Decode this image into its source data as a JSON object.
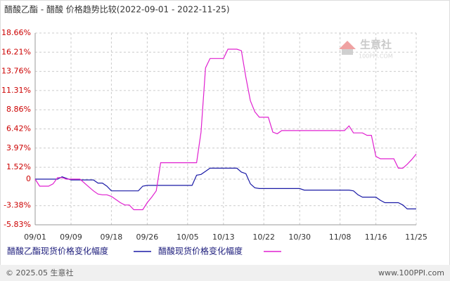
{
  "chart_data": {
    "type": "line",
    "title": "醋酸乙酯 - 醋酸 价格趋势比较(2022-09-01 - 2022-11-25)",
    "watermark": {
      "brand": "生意社",
      "site": "100PPI.COM"
    },
    "footer": {
      "left": "© 2025.05 生意社",
      "right": "www.100PPI.com"
    },
    "categories": [
      "09/01",
      null,
      null,
      null,
      null,
      null,
      null,
      null,
      "09/09",
      null,
      null,
      null,
      null,
      null,
      null,
      null,
      null,
      "09/18",
      null,
      null,
      null,
      null,
      null,
      null,
      null,
      "09/26",
      null,
      null,
      null,
      null,
      null,
      null,
      null,
      null,
      "10/05",
      null,
      null,
      null,
      null,
      null,
      null,
      null,
      "10/13",
      null,
      null,
      null,
      null,
      null,
      null,
      null,
      null,
      "10/22",
      null,
      null,
      null,
      null,
      null,
      null,
      null,
      "10/30",
      null,
      null,
      null,
      null,
      null,
      null,
      null,
      null,
      "11/08",
      null,
      null,
      null,
      null,
      null,
      null,
      null,
      "11/16",
      null,
      null,
      null,
      null,
      null,
      null,
      null,
      null,
      "11/25"
    ],
    "series": [
      {
        "name": "醋酸乙酯现货价格变化幅度",
        "color": "#1a1aa6",
        "values": [
          0,
          0,
          0,
          0,
          0,
          0,
          0.3,
          0.1,
          -0.1,
          -0.1,
          -0.1,
          -0.1,
          -0.1,
          -0.1,
          -0.5,
          -0.5,
          -0.9,
          -1.5,
          -1.5,
          -1.5,
          -1.5,
          -1.5,
          -1.5,
          -1.5,
          -0.9,
          -0.8,
          -0.8,
          -0.8,
          -0.8,
          -0.8,
          -0.8,
          -0.8,
          -0.8,
          -0.8,
          -0.8,
          -0.8,
          0.5,
          0.6,
          1.0,
          1.4,
          1.4,
          1.4,
          1.4,
          1.4,
          1.4,
          1.4,
          0.9,
          0.7,
          -0.6,
          -1.1,
          -1.2,
          -1.2,
          -1.2,
          -1.2,
          -1.2,
          -1.2,
          -1.2,
          -1.2,
          -1.2,
          -1.2,
          -1.4,
          -1.4,
          -1.4,
          -1.4,
          -1.4,
          -1.4,
          -1.4,
          -1.4,
          -1.4,
          -1.4,
          -1.4,
          -1.5,
          -2.0,
          -2.3,
          -2.3,
          -2.3,
          -2.3,
          -2.7,
          -3.0,
          -3.0,
          -3.0,
          -3.0,
          -3.3,
          -3.8,
          -3.8,
          -3.8
        ]
      },
      {
        "name": "醋酸现货价格变化幅度",
        "color": "#e020d0",
        "values": [
          0,
          -0.9,
          -0.9,
          -0.9,
          -0.6,
          0.2,
          0.2,
          0,
          0,
          0,
          0,
          -0.5,
          -1.0,
          -1.5,
          -1.9,
          -2.0,
          -2.0,
          -2.2,
          -2.6,
          -3.0,
          -3.3,
          -3.3,
          -3.9,
          -3.9,
          -3.9,
          -3.0,
          -2.3,
          -1.5,
          2.1,
          2.1,
          2.1,
          2.1,
          2.1,
          2.1,
          2.1,
          2.1,
          2.1,
          6.0,
          14.2,
          15.4,
          15.4,
          15.4,
          15.4,
          16.6,
          16.6,
          16.6,
          16.4,
          13.0,
          10.0,
          8.6,
          7.9,
          7.9,
          7.9,
          6.0,
          5.8,
          6.2,
          6.2,
          6.2,
          6.2,
          6.2,
          6.2,
          6.2,
          6.2,
          6.2,
          6.2,
          6.2,
          6.2,
          6.2,
          6.2,
          6.2,
          6.8,
          5.9,
          5.9,
          5.9,
          5.6,
          5.6,
          2.9,
          2.6,
          2.6,
          2.6,
          2.6,
          1.4,
          1.4,
          1.9,
          2.5,
          3.2
        ]
      }
    ],
    "ylim": [
      -5.83,
      18.66
    ],
    "yticks": [
      {
        "value": -5.83,
        "label": "-5.83%"
      },
      {
        "value": -3.38,
        "label": "-3.38%"
      },
      0,
      {
        "value": 1.52,
        "label": "1.52%"
      },
      {
        "value": 3.97,
        "label": "3.97%"
      },
      {
        "value": 6.42,
        "label": "6.42%"
      },
      {
        "value": 8.86,
        "label": "8.86%"
      },
      {
        "value": 11.31,
        "label": "11.31%"
      },
      {
        "value": 13.76,
        "label": "13.76%"
      },
      {
        "value": 16.21,
        "label": "16.21%"
      },
      {
        "value": 18.66,
        "label": "18.66%"
      }
    ],
    "grid": true
  }
}
